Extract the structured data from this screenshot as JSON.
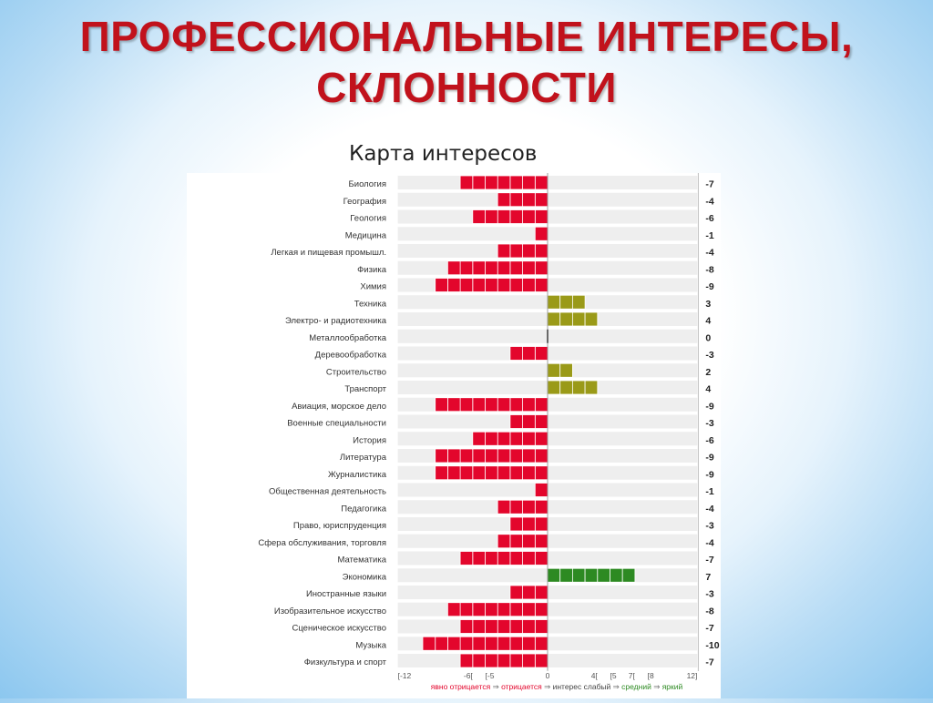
{
  "slide": {
    "title_line1": "ПРОФЕССИОНАЛЬНЫЕ ИНТЕРЕСЫ,",
    "title_line2": "СКЛОННОСТИ",
    "subtitle": "Карта интересов"
  },
  "colors": {
    "title": "#c1121c",
    "negative": "#e3062c",
    "medium": "#9a9a18",
    "bright": "#2d8a22",
    "row_bg": "#eeeeee"
  },
  "chart_data": {
    "type": "bar",
    "orientation": "horizontal",
    "categories": [
      "Биология",
      "География",
      "Геология",
      "Медицина",
      "Легкая и пищевая промышл.",
      "Физика",
      "Химия",
      "Техника",
      "Электро- и радиотехника",
      "Металлообработка",
      "Деревообработка",
      "Строительство",
      "Транспорт",
      "Авиация, морское дело",
      "Военные специальности",
      "История",
      "Литература",
      "Журналистика",
      "Общественная деятельность",
      "Педагогика",
      "Право, юриспруденция",
      "Сфера обслуживания, торговля",
      "Математика",
      "Экономика",
      "Иностранные языки",
      "Изобразительное искусство",
      "Сценическое искусство",
      "Музыка",
      "Физкультура и спорт"
    ],
    "values": [
      -7,
      -4,
      -6,
      -1,
      -4,
      -8,
      -9,
      3,
      4,
      0,
      -3,
      2,
      4,
      -9,
      -3,
      -6,
      -9,
      -9,
      -1,
      -4,
      -3,
      -4,
      -7,
      7,
      -3,
      -8,
      -7,
      -10,
      -7
    ],
    "value_labels": [
      "-7",
      "-4",
      "-6",
      "-1",
      "-4",
      "-8",
      "-9",
      "3",
      "4",
      "0",
      "-3",
      "2",
      "4",
      "-9",
      "-3",
      "-6",
      "-9",
      "-9",
      "-1",
      "-4",
      "-3",
      "-4",
      "-7",
      "7",
      "-3",
      "-8",
      "-7",
      "-10",
      "-7"
    ],
    "xlim": [
      -12,
      12
    ],
    "x_tick_labels": [
      "[-12",
      "-6[",
      "[-5",
      "0",
      "4[",
      "[5",
      "7[",
      "[8",
      "12]"
    ],
    "legend": {
      "items": [
        {
          "label": "явно отрицается",
          "color": "#e3062c"
        },
        {
          "label": "отрицается",
          "color": "#e3062c"
        },
        {
          "label": "интерес слабый",
          "color": "#444444"
        },
        {
          "label": "средний",
          "color": "#2d8a22"
        },
        {
          "label": "яркий",
          "color": "#2d8a22"
        }
      ],
      "separator": "⇒",
      "placement": "bottom"
    },
    "grid": true
  }
}
